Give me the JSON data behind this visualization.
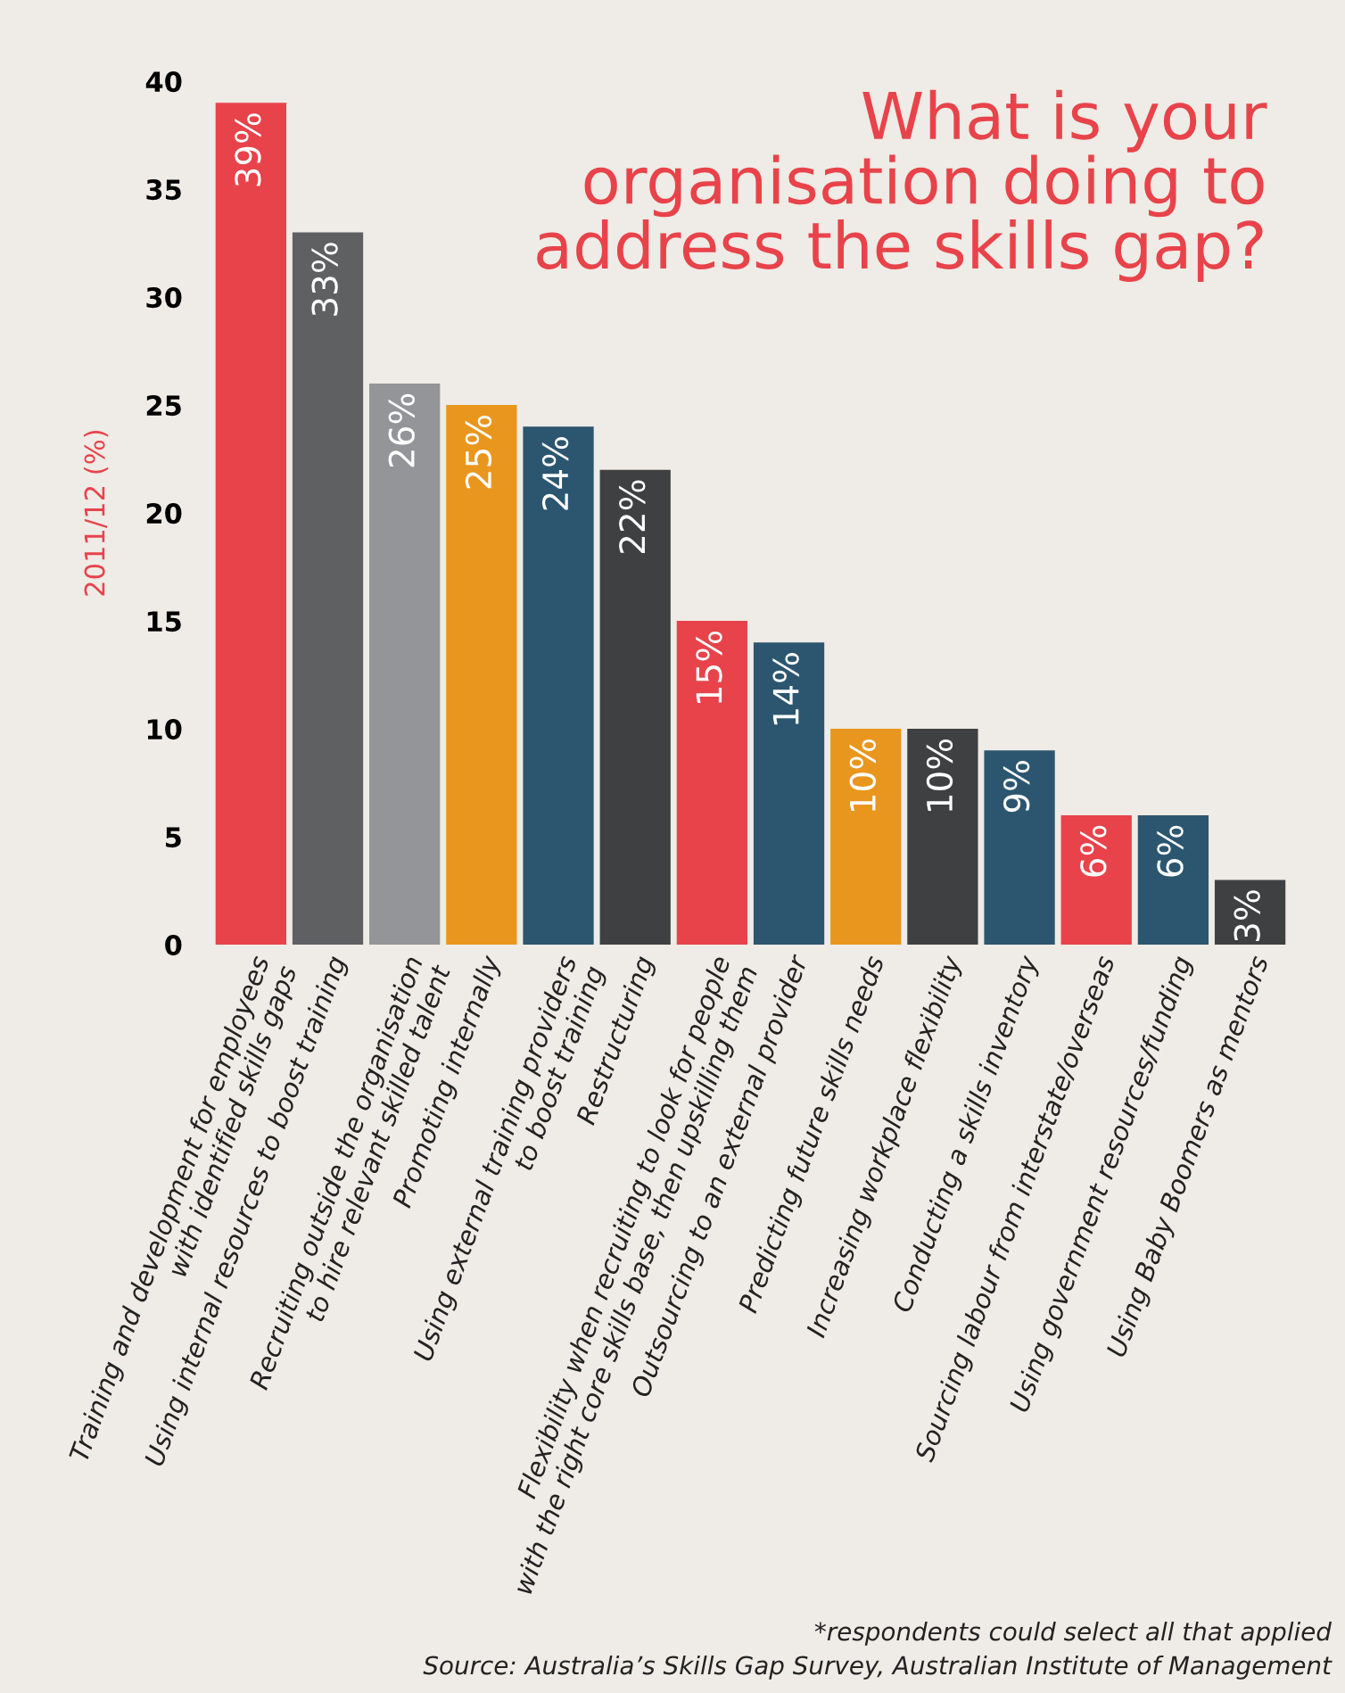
{
  "chart_data": {
    "type": "bar",
    "title": "What is your\norganisation doing to\naddress the skills gap?",
    "ylabel": "2011/12 (%)",
    "categories": [
      "Training and development for employees\nwith identified skills gaps",
      "Using internal resources to boost training",
      "Recruiting outside the organisation\nto hire relevant skilled talent",
      "Promoting internally",
      "Using external training providers\nto boost training",
      "Restructuring",
      "Flexibility when recruiting to look for people\nwith the right core skills base, then upskilling them",
      "Outsourcing to an external provider",
      "Predicting future skills needs",
      "Increasing workplace flexibility",
      "Conducting a skills inventory",
      "Sourcing labour from interstate/overseas",
      "Using government resources/funding",
      "Using Baby Boomers as mentors"
    ],
    "values": [
      39,
      33,
      26,
      25,
      24,
      22,
      15,
      14,
      10,
      10,
      9,
      6,
      6,
      3
    ],
    "colors": [
      "#e8434a",
      "#5f6062",
      "#939598",
      "#e9961e",
      "#2c5670",
      "#3f4042",
      "#e8434a",
      "#2c5670",
      "#e9961e",
      "#3f4042",
      "#2c5670",
      "#e8434a",
      "#2c5670",
      "#3f4042"
    ],
    "value_labels": [
      "39%",
      "33%",
      "26%",
      "25%",
      "24%",
      "22%",
      "15%",
      "14%",
      "10%",
      "10%",
      "9%",
      "6%",
      "6%",
      "3%"
    ],
    "ylim": [
      0,
      40
    ],
    "yticks": [
      0,
      5,
      10,
      15,
      20,
      25,
      30,
      35,
      40
    ],
    "grid": false,
    "legend": false,
    "annotations": [
      "*respondents could select all that applied",
      "Source: Australia’s Skills Gap Survey, Australian Institute of Management"
    ]
  }
}
